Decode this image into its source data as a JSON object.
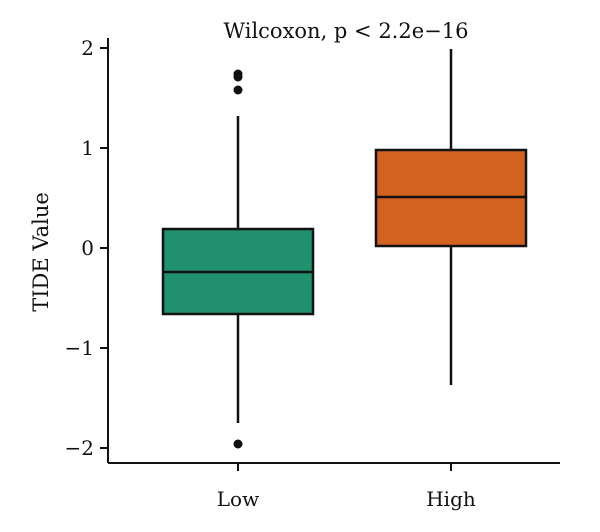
{
  "chart_data": {
    "type": "box",
    "annotation": "Wilcoxon, p < 2.2e−16",
    "xlabel": "",
    "ylabel": "TIDE Value",
    "ylim": [
      -2.15,
      2.1
    ],
    "yticks": [
      -2,
      -1,
      0,
      1,
      2
    ],
    "ytick_labels": [
      "−2",
      "−1",
      "0",
      "1",
      "2"
    ],
    "categories": [
      "Low",
      "High"
    ],
    "boxes": [
      {
        "category": "Low",
        "color": "#21906f",
        "q1": -0.66,
        "median": -0.24,
        "q3": 0.19,
        "whisker_low": -1.75,
        "whisker_high": 1.32,
        "outliers": [
          1.74,
          1.71,
          1.58,
          -1.96
        ]
      },
      {
        "category": "High",
        "color": "#d4621f",
        "q1": 0.02,
        "median": 0.51,
        "q3": 0.98,
        "whisker_low": -1.37,
        "whisker_high": 1.99,
        "outliers": []
      }
    ],
    "grid": false,
    "legend": "none"
  }
}
